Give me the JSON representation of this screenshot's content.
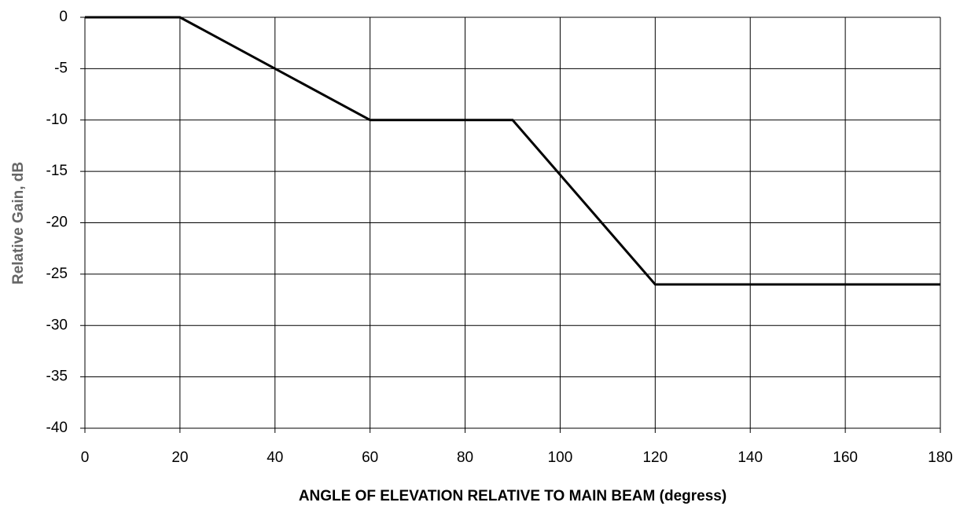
{
  "chart_data": {
    "type": "line",
    "x_label": "ANGLE OF ELEVATION RELATIVE TO MAIN BEAM (degress)",
    "y_label": "Relative Gain, dB",
    "x": [
      0,
      20,
      60,
      90,
      120,
      180
    ],
    "series": [
      {
        "color": "#000000",
        "values": [
          0,
          0,
          -10,
          -10,
          -26,
          -26
        ]
      }
    ],
    "xlim": [
      0,
      180
    ],
    "xticks": [
      0,
      20,
      40,
      60,
      80,
      100,
      120,
      140,
      160,
      180
    ],
    "ylim": [
      -40,
      0
    ],
    "yticks": [
      0,
      -5,
      -10,
      -15,
      -20,
      -25,
      -30,
      -35,
      -40
    ],
    "grid": true
  }
}
